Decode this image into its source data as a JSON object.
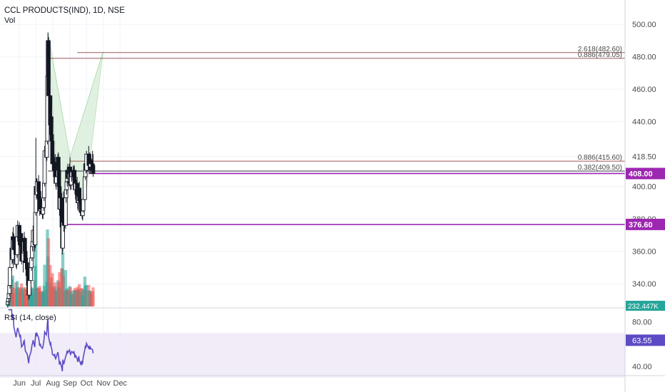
{
  "header": {
    "title": "CCL PRODUCTS(IND), 1D, NSE",
    "volume_label": "Vol",
    "rsi_label": "RSI (14, close)"
  },
  "colors": {
    "up": "#26a69a",
    "down": "#ef5350",
    "candle_body": "#131722",
    "pattern_fill": "#c8e6c9",
    "fib_red": "#8d3b3b",
    "fib_dark": "#131722",
    "purple": "#9c27b0",
    "rsi_line": "#5c4bc4",
    "rsi_band": "#ede7f6",
    "axis_text": "#4a4a4a"
  },
  "chart_data": {
    "type": "candlestick",
    "price_axis": {
      "range": [
        326,
        508
      ],
      "ticks": [
        "500.00",
        "480.00",
        "460.00",
        "440.00",
        "418.50",
        "400.00",
        "380.00",
        "360.00",
        "340.00"
      ],
      "tick_values": [
        500,
        480,
        460,
        440,
        418.5,
        400,
        380,
        360,
        340
      ]
    },
    "time_axis": {
      "labels": [
        "Jun",
        "Jul",
        "Aug",
        "Sep",
        "Oct",
        "Nov",
        "Dec"
      ],
      "label_dates": [
        "2020-06-01",
        "2020-07-01",
        "2020-08-01",
        "2020-09-01",
        "2020-10-01",
        "2020-11-01",
        "2020-12-01"
      ]
    },
    "candles_note": "daily OHLC, 2020-05-11 to 2020-10-13, trading days only",
    "candles": [
      [
        "2020-05-11",
        327,
        331,
        325,
        329
      ],
      [
        "2020-05-12",
        329,
        333,
        327,
        331
      ],
      [
        "2020-05-13",
        331,
        336,
        329,
        334
      ],
      [
        "2020-05-14",
        334,
        342,
        332,
        339
      ],
      [
        "2020-05-15",
        339,
        352,
        337,
        350
      ],
      [
        "2020-05-18",
        350,
        365,
        348,
        362
      ],
      [
        "2020-05-19",
        362,
        366,
        352,
        355
      ],
      [
        "2020-05-20",
        355,
        372,
        353,
        369
      ],
      [
        "2020-05-21",
        369,
        375,
        364,
        367
      ],
      [
        "2020-05-22",
        367,
        371,
        358,
        361
      ],
      [
        "2020-05-26",
        361,
        366,
        350,
        352
      ],
      [
        "2020-05-27",
        352,
        361,
        349,
        358
      ],
      [
        "2020-05-28",
        358,
        372,
        356,
        369
      ],
      [
        "2020-05-29",
        369,
        379,
        366,
        376
      ],
      [
        "2020-06-01",
        376,
        378,
        366,
        368
      ],
      [
        "2020-06-02",
        368,
        372,
        361,
        364
      ],
      [
        "2020-06-03",
        364,
        373,
        362,
        371
      ],
      [
        "2020-06-04",
        371,
        374,
        362,
        363
      ],
      [
        "2020-06-05",
        363,
        367,
        352,
        354
      ],
      [
        "2020-06-08",
        354,
        361,
        347,
        359
      ],
      [
        "2020-06-09",
        359,
        368,
        357,
        366
      ],
      [
        "2020-06-10",
        366,
        372,
        362,
        368
      ],
      [
        "2020-06-11",
        368,
        369,
        358,
        360
      ],
      [
        "2020-06-12",
        360,
        364,
        351,
        353
      ],
      [
        "2020-06-15",
        353,
        358,
        346,
        349
      ],
      [
        "2020-06-16",
        349,
        356,
        343,
        345
      ],
      [
        "2020-06-17",
        345,
        350,
        336,
        339
      ],
      [
        "2020-06-18",
        339,
        345,
        330,
        333
      ],
      [
        "2020-06-19",
        333,
        344,
        331,
        342
      ],
      [
        "2020-06-22",
        342,
        353,
        340,
        350
      ],
      [
        "2020-06-23",
        350,
        358,
        348,
        356
      ],
      [
        "2020-06-24",
        356,
        366,
        354,
        363
      ],
      [
        "2020-06-25",
        363,
        369,
        360,
        366
      ],
      [
        "2020-06-26",
        366,
        376,
        364,
        373
      ],
      [
        "2020-06-29",
        373,
        378,
        360,
        364
      ],
      [
        "2020-06-30",
        364,
        386,
        362,
        384
      ],
      [
        "2020-07-01",
        384,
        430,
        382,
        400
      ],
      [
        "2020-07-02",
        400,
        405,
        392,
        395
      ],
      [
        "2020-07-03",
        395,
        405,
        393,
        403
      ],
      [
        "2020-07-06",
        403,
        407,
        394,
        397
      ],
      [
        "2020-07-07",
        397,
        403,
        390,
        392
      ],
      [
        "2020-07-08",
        392,
        396,
        382,
        385
      ],
      [
        "2020-07-09",
        385,
        393,
        383,
        390
      ],
      [
        "2020-07-10",
        390,
        394,
        383,
        386
      ],
      [
        "2020-07-13",
        386,
        392,
        380,
        383
      ],
      [
        "2020-07-14",
        383,
        390,
        380,
        387
      ],
      [
        "2020-07-15",
        387,
        395,
        385,
        393
      ],
      [
        "2020-07-16",
        393,
        404,
        391,
        402
      ],
      [
        "2020-07-17",
        402,
        425,
        400,
        422
      ],
      [
        "2020-07-20",
        422,
        428,
        415,
        418
      ],
      [
        "2020-07-21",
        418,
        432,
        416,
        428
      ],
      [
        "2020-07-22",
        428,
        470,
        426,
        468
      ],
      [
        "2020-07-23",
        468,
        495,
        464,
        490
      ],
      [
        "2020-07-24",
        490,
        492,
        452,
        456
      ],
      [
        "2020-07-27",
        456,
        460,
        434,
        438
      ],
      [
        "2020-07-28",
        438,
        448,
        430,
        443
      ],
      [
        "2020-07-29",
        443,
        447,
        428,
        432
      ],
      [
        "2020-07-30",
        432,
        438,
        424,
        428
      ],
      [
        "2020-07-31",
        428,
        432,
        411,
        414
      ],
      [
        "2020-08-03",
        414,
        422,
        406,
        410
      ],
      [
        "2020-08-04",
        410,
        418,
        404,
        415
      ],
      [
        "2020-08-05",
        415,
        420,
        404,
        406
      ],
      [
        "2020-08-06",
        406,
        412,
        400,
        402
      ],
      [
        "2020-08-07",
        402,
        410,
        398,
        406
      ],
      [
        "2020-08-10",
        406,
        420,
        404,
        418
      ],
      [
        "2020-08-11",
        418,
        421,
        408,
        410
      ],
      [
        "2020-08-12",
        410,
        414,
        398,
        400
      ],
      [
        "2020-08-13",
        400,
        404,
        382,
        386
      ],
      [
        "2020-08-14",
        386,
        396,
        384,
        393
      ],
      [
        "2020-08-17",
        393,
        396,
        373,
        375
      ],
      [
        "2020-08-18",
        375,
        384,
        358,
        362
      ],
      [
        "2020-08-19",
        362,
        392,
        360,
        389
      ],
      [
        "2020-08-20",
        389,
        397,
        376,
        378
      ],
      [
        "2020-08-21",
        378,
        384,
        372,
        376
      ],
      [
        "2020-08-24",
        376,
        396,
        374,
        393
      ],
      [
        "2020-08-25",
        393,
        402,
        390,
        398
      ],
      [
        "2020-08-26",
        398,
        406,
        395,
        403
      ],
      [
        "2020-08-27",
        403,
        412,
        400,
        410
      ],
      [
        "2020-08-28",
        410,
        414,
        402,
        405
      ],
      [
        "2020-08-31",
        405,
        414,
        400,
        412
      ],
      [
        "2020-09-01",
        412,
        418,
        406,
        408
      ],
      [
        "2020-09-02",
        408,
        411,
        398,
        401
      ],
      [
        "2020-09-03",
        401,
        408,
        398,
        406
      ],
      [
        "2020-09-04",
        406,
        412,
        403,
        409
      ],
      [
        "2020-09-07",
        409,
        413,
        404,
        406
      ],
      [
        "2020-09-08",
        406,
        412,
        400,
        410
      ],
      [
        "2020-09-09",
        410,
        413,
        402,
        404
      ],
      [
        "2020-09-10",
        404,
        408,
        395,
        398
      ],
      [
        "2020-09-11",
        398,
        404,
        392,
        402
      ],
      [
        "2020-09-14",
        402,
        406,
        394,
        396
      ],
      [
        "2020-09-15",
        396,
        400,
        386,
        390
      ],
      [
        "2020-09-16",
        390,
        397,
        385,
        394
      ],
      [
        "2020-09-17",
        394,
        402,
        390,
        399
      ],
      [
        "2020-09-18",
        399,
        403,
        388,
        391
      ],
      [
        "2020-09-21",
        391,
        394,
        382,
        384
      ],
      [
        "2020-09-22",
        384,
        392,
        382,
        389
      ],
      [
        "2020-09-23",
        389,
        392,
        380,
        382
      ],
      [
        "2020-09-24",
        382,
        386,
        379,
        385
      ],
      [
        "2020-09-25",
        385,
        395,
        384,
        392
      ],
      [
        "2020-09-28",
        392,
        408,
        390,
        406
      ],
      [
        "2020-09-29",
        406,
        418,
        404,
        414
      ],
      [
        "2020-09-30",
        414,
        420,
        408,
        410
      ],
      [
        "2020-10-01",
        410,
        422,
        409,
        420
      ],
      [
        "2020-10-05",
        420,
        425,
        410,
        413
      ],
      [
        "2020-10-06",
        413,
        420,
        408,
        417
      ],
      [
        "2020-10-07",
        417,
        421,
        410,
        412
      ],
      [
        "2020-10-08",
        412,
        419,
        408,
        416
      ],
      [
        "2020-10-09",
        416,
        420,
        410,
        414
      ],
      [
        "2020-10-12",
        414,
        422,
        409,
        413
      ],
      [
        "2020-10-13",
        413,
        420,
        406,
        408
      ]
    ],
    "harmonic_pattern": {
      "points": [
        [
          "2020-07-23",
          495
        ],
        [
          "2020-08-18",
          358
        ],
        [
          "2020-09-01",
          418
        ],
        [
          "2020-09-24",
          379
        ],
        [
          "2020-10-31",
          483
        ]
      ]
    },
    "fib_levels": [
      {
        "label": "2.618(482.60)",
        "value": 482.6
      },
      {
        "label": "0.886(479.05)",
        "value": 479.05
      },
      {
        "label": "0.886(415.60)",
        "value": 415.6
      },
      {
        "label": "0.382(409.50)",
        "value": 409.5
      }
    ],
    "horizontal_lines": [
      {
        "label": "408.00",
        "value": 408
      },
      {
        "label": "376.60",
        "value": 376.6
      }
    ],
    "volume_label_value": "232.447K",
    "rsi": {
      "value_label": "63.55",
      "axis_range": [
        33,
        92
      ],
      "ticks": [
        "80.00",
        "40.00"
      ],
      "tick_values": [
        80,
        40
      ],
      "band": [
        30,
        70
      ]
    }
  }
}
